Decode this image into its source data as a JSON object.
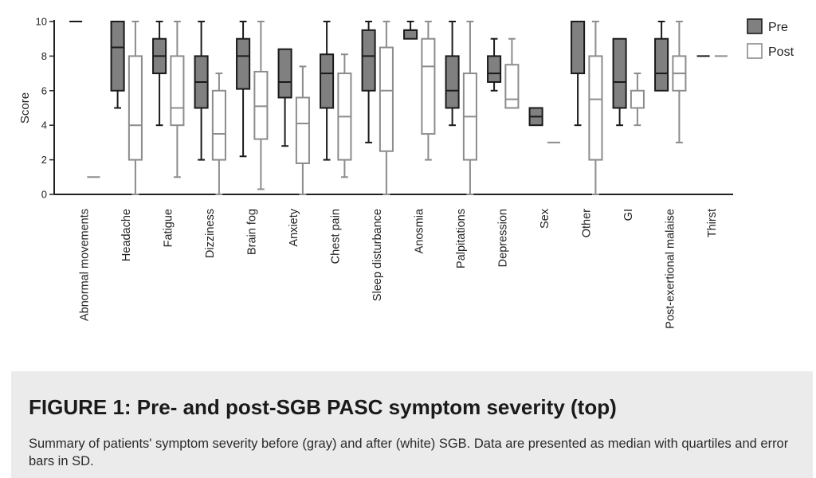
{
  "chart_data": {
    "type": "box",
    "ylabel": "Score",
    "ylim": [
      0,
      10
    ],
    "yticks": [
      "0",
      "2",
      "4",
      "6",
      "8",
      "10"
    ],
    "grid": false,
    "legend_position": "top-right",
    "categories": [
      "Abnormal movements",
      "Headache",
      "Fatigue",
      "Dizziness",
      "Brain fog",
      "Anxiety",
      "Chest pain",
      "Sleep disturbance",
      "Anosmia",
      "Palpitations",
      "Depression",
      "Sex",
      "Other",
      "GI",
      "Post-exertional malaise",
      "Thirst"
    ],
    "series": [
      {
        "name": "Pre",
        "color": "#808080",
        "boxes": [
          {
            "min": 10,
            "q1": 10,
            "median": 10,
            "q3": 10,
            "max": 10
          },
          {
            "min": 5,
            "q1": 6,
            "median": 8.5,
            "q3": 10,
            "max": 10
          },
          {
            "min": 4,
            "q1": 7,
            "median": 8,
            "q3": 9,
            "max": 10
          },
          {
            "min": 2,
            "q1": 5,
            "median": 6.5,
            "q3": 8,
            "max": 10
          },
          {
            "min": 2.2,
            "q1": 6.1,
            "median": 8,
            "q3": 9,
            "max": 10
          },
          {
            "min": 2.8,
            "q1": 5.6,
            "median": 6.5,
            "q3": 8.4,
            "max": 8.4
          },
          {
            "min": 2,
            "q1": 5,
            "median": 7,
            "q3": 8.1,
            "max": 10
          },
          {
            "min": 3,
            "q1": 6,
            "median": 8,
            "q3": 9.5,
            "max": 10
          },
          {
            "min": 9,
            "q1": 9,
            "median": 9.5,
            "q3": 9.5,
            "max": 10
          },
          {
            "min": 4,
            "q1": 5,
            "median": 6,
            "q3": 8,
            "max": 10
          },
          {
            "min": 6,
            "q1": 6.5,
            "median": 7,
            "q3": 8,
            "max": 9
          },
          {
            "min": 4,
            "q1": 4,
            "median": 4.5,
            "q3": 5,
            "max": 5
          },
          {
            "min": 4,
            "q1": 7,
            "median": 10,
            "q3": 10,
            "max": 10
          },
          {
            "min": 4,
            "q1": 5,
            "median": 6.5,
            "q3": 9,
            "max": 9
          },
          {
            "min": 6,
            "q1": 6,
            "median": 7,
            "q3": 9,
            "max": 10
          },
          {
            "min": 8,
            "q1": 8,
            "median": 8,
            "q3": 8,
            "max": 8
          }
        ]
      },
      {
        "name": "Post",
        "color": "#ffffff",
        "boxes": [
          {
            "min": 1,
            "q1": 1,
            "median": 1,
            "q3": 1,
            "max": 1
          },
          {
            "min": 0,
            "q1": 2,
            "median": 4,
            "q3": 8,
            "max": 10
          },
          {
            "min": 1,
            "q1": 4,
            "median": 5,
            "q3": 8,
            "max": 10
          },
          {
            "min": 0,
            "q1": 2,
            "median": 3.5,
            "q3": 6,
            "max": 7
          },
          {
            "min": 0.3,
            "q1": 3.2,
            "median": 5.1,
            "q3": 7.1,
            "max": 10
          },
          {
            "min": 0,
            "q1": 1.8,
            "median": 4.1,
            "q3": 5.6,
            "max": 7.4
          },
          {
            "min": 1,
            "q1": 2,
            "median": 4.5,
            "q3": 7,
            "max": 8.1
          },
          {
            "min": 0,
            "q1": 2.5,
            "median": 6,
            "q3": 8.5,
            "max": 10
          },
          {
            "min": 2,
            "q1": 3.5,
            "median": 7.4,
            "q3": 9,
            "max": 10
          },
          {
            "min": 0,
            "q1": 2,
            "median": 4.5,
            "q3": 7,
            "max": 10
          },
          {
            "min": 5,
            "q1": 5,
            "median": 5.5,
            "q3": 7.5,
            "max": 9
          },
          {
            "min": 3,
            "q1": 3,
            "median": 3,
            "q3": 3,
            "max": 3
          },
          {
            "min": 0,
            "q1": 2,
            "median": 5.5,
            "q3": 8,
            "max": 10
          },
          {
            "min": 4,
            "q1": 5,
            "median": 5,
            "q3": 6,
            "max": 7
          },
          {
            "min": 3,
            "q1": 6,
            "median": 7,
            "q3": 8,
            "max": 10
          },
          {
            "min": 8,
            "q1": 8,
            "median": 8,
            "q3": 8,
            "max": 8
          }
        ]
      }
    ]
  },
  "caption": {
    "title": "FIGURE 1: Pre- and post-SGB PASC symptom severity (top)",
    "text": "Summary of patients' symptom severity before (gray) and after (white) SGB. Data are presented as median with quartiles and error bars in SD."
  }
}
